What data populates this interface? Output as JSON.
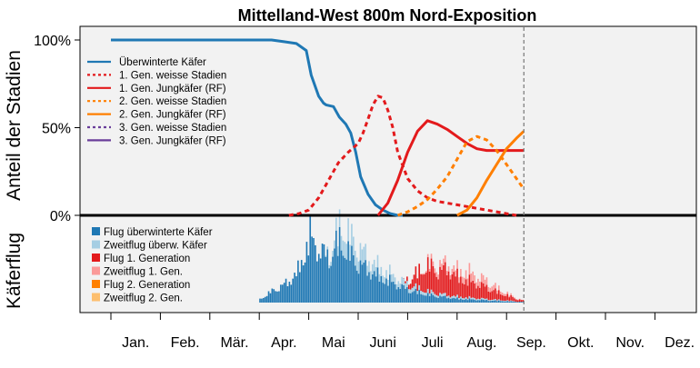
{
  "chart_data": {
    "type": "line",
    "title": "Mittelland-West 800m Nord-Exposition",
    "ylabel_top": "Anteil der Stadien",
    "ylabel_bottom": "Käferflug",
    "y_ticks": [
      "100%",
      "50%",
      "0%"
    ],
    "y_tick_values": [
      100,
      50,
      0
    ],
    "ylim": [
      0,
      108
    ],
    "xlim": [
      0,
      12
    ],
    "months": [
      "Jan.",
      "Feb.",
      "Mär.",
      "Apr.",
      "Mai",
      "Juni",
      "Juli",
      "Aug.",
      "Sep.",
      "Okt.",
      "Nov.",
      "Dez."
    ],
    "current_date_marker": 8.35,
    "grid": false,
    "legend_placement": "top-left",
    "stage_series": [
      {
        "name": "Überwinterte Käfer",
        "color": "#1f78b4",
        "dash": "solid",
        "x": [
          0.0,
          3.0,
          3.25,
          3.5,
          3.75,
          3.95,
          4.05,
          4.2,
          4.3,
          4.35,
          4.5,
          4.62,
          4.75,
          4.85,
          4.95,
          5.05,
          5.2,
          5.35,
          5.5,
          5.65,
          5.8,
          5.9
        ],
        "y": [
          100,
          100,
          100,
          99,
          98,
          94,
          80,
          68,
          64,
          63,
          62,
          56,
          52,
          47,
          36,
          22,
          12,
          6,
          3,
          1,
          0,
          0
        ]
      },
      {
        "name": "1. Gen. weisse Stadien",
        "color": "#e31a1c",
        "dash": "dotted",
        "x": [
          3.6,
          3.8,
          4.0,
          4.2,
          4.4,
          4.6,
          4.8,
          5.0,
          5.1,
          5.2,
          5.3,
          5.4,
          5.5,
          5.6,
          5.7,
          5.8,
          6.0,
          6.2,
          6.4,
          6.6,
          6.8,
          7.0,
          7.2,
          7.4,
          7.6,
          7.8,
          8.0,
          8.2
        ],
        "y": [
          0,
          1,
          3,
          10,
          20,
          30,
          36,
          41,
          47,
          55,
          63,
          68,
          67,
          60,
          50,
          36,
          21,
          14,
          10,
          8,
          7,
          6,
          5,
          4,
          3,
          2,
          1,
          0
        ]
      },
      {
        "name": "1. Gen. Jungkäfer (RF)",
        "color": "#e31a1c",
        "dash": "solid",
        "x": [
          5.4,
          5.6,
          5.8,
          6.0,
          6.2,
          6.4,
          6.6,
          6.8,
          7.0,
          7.2,
          7.4,
          7.6,
          7.8,
          8.0,
          8.35
        ],
        "y": [
          0,
          7,
          20,
          36,
          48,
          54,
          52,
          49,
          45,
          41,
          38,
          37,
          37,
          37,
          37
        ]
      },
      {
        "name": "2. Gen. weisse Stadien",
        "color": "#ff7f00",
        "dash": "dotted",
        "x": [
          5.8,
          6.0,
          6.2,
          6.4,
          6.6,
          6.8,
          7.0,
          7.2,
          7.4,
          7.6,
          7.8,
          8.0,
          8.2,
          8.35
        ],
        "y": [
          0,
          2,
          5,
          9,
          15,
          22,
          32,
          42,
          45,
          43,
          37,
          29,
          21,
          15
        ]
      },
      {
        "name": "2. Gen. Jungkäfer (RF)",
        "color": "#ff7f00",
        "dash": "solid",
        "x": [
          7.0,
          7.2,
          7.4,
          7.6,
          7.8,
          8.0,
          8.2,
          8.35
        ],
        "y": [
          0,
          3,
          10,
          20,
          29,
          38,
          44,
          48
        ]
      },
      {
        "name": "3. Gen. weisse Stadien",
        "color": "#6a3d9a",
        "dash": "dotted",
        "x": [],
        "y": []
      },
      {
        "name": "3. Gen. Jungkäfer (RF)",
        "color": "#6a3d9a",
        "dash": "solid",
        "x": [],
        "y": []
      }
    ],
    "flight_series": [
      {
        "name": "Flug überwinterte Käfer",
        "color": "#1f78b4"
      },
      {
        "name": "Zweitflug überw. Käfer",
        "color": "#a6cee3"
      },
      {
        "name": "Flug 1. Generation",
        "color": "#e31a1c"
      },
      {
        "name": "Zweitflug 1. Gen.",
        "color": "#fb9a99"
      },
      {
        "name": "Flug 2. Generation",
        "color": "#ff7f00"
      },
      {
        "name": "Zweitflug 2. Gen.",
        "color": "#fdbf6f"
      }
    ],
    "flight_profiles": [
      {
        "series": 0,
        "x": [
          3.0,
          3.25,
          3.5,
          3.75,
          3.9,
          4.0,
          4.2,
          4.4,
          4.6,
          4.8,
          5.0,
          5.2,
          5.4,
          5.6,
          5.8,
          6.0,
          6.2,
          6.4,
          6.6,
          6.8,
          7.0,
          7.5,
          8.0,
          8.35
        ],
        "y": [
          5,
          18,
          28,
          45,
          75,
          105,
          80,
          70,
          95,
          75,
          60,
          50,
          40,
          34,
          26,
          20,
          16,
          12,
          10,
          8,
          6,
          4,
          2,
          1
        ]
      },
      {
        "series": 1,
        "x": [
          4.3,
          4.5,
          4.7,
          5.0,
          5.2,
          5.4,
          5.6,
          5.8,
          6.0,
          6.2,
          6.4,
          6.6,
          7.0,
          7.5,
          8.0,
          8.35
        ],
        "y": [
          0,
          12,
          30,
          25,
          18,
          14,
          12,
          10,
          8,
          6,
          5,
          4,
          3,
          2,
          1,
          0
        ]
      },
      {
        "series": 2,
        "x": [
          5.9,
          6.0,
          6.2,
          6.4,
          6.6,
          6.8,
          7.0,
          7.2,
          7.4,
          7.6,
          7.8,
          8.0,
          8.2,
          8.35
        ],
        "y": [
          0,
          8,
          25,
          40,
          35,
          40,
          30,
          26,
          22,
          18,
          12,
          8,
          4,
          2
        ]
      },
      {
        "series": 3,
        "x": [
          6.2,
          6.4,
          6.6,
          6.8,
          7.0,
          7.2,
          7.4,
          7.6,
          7.8,
          8.0,
          8.2,
          8.35
        ],
        "y": [
          0,
          4,
          10,
          8,
          10,
          14,
          12,
          10,
          6,
          3,
          1,
          0
        ]
      }
    ]
  }
}
